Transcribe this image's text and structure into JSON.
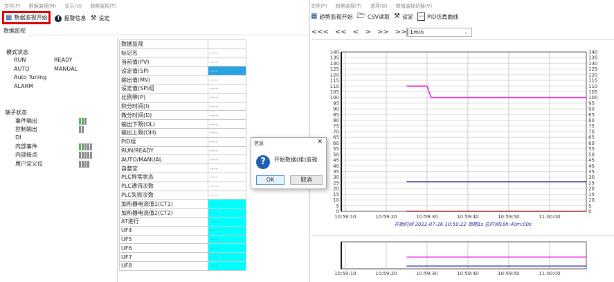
{
  "left": {
    "menu": [
      "文件(F)",
      "数据监视(M)",
      "显示(U)",
      "趋势监视(T)"
    ],
    "toolbar": {
      "start_monitor": "数据监视开始",
      "alarm_info": "报警信息",
      "settings": "设定"
    },
    "tab": "数据监视",
    "mode_status": {
      "title": "模式状态",
      "items": [
        [
          "RUN",
          "READY"
        ],
        [
          "AUTO",
          "MANUAL"
        ],
        [
          "Auto Tuning",
          ""
        ],
        [
          "ALARM",
          ""
        ]
      ]
    },
    "io_status": {
      "title": "端子状态",
      "items": [
        {
          "label": "事件输出",
          "bars": [
            1,
            0,
            0
          ]
        },
        {
          "label": "控制输出",
          "bars": [
            0,
            0
          ]
        },
        {
          "label": "DI",
          "bars": []
        },
        {
          "label": "内部事件",
          "bars": [
            1,
            0,
            0,
            0,
            0
          ]
        },
        {
          "label": "内部接点",
          "bars": [
            0,
            0,
            0,
            0,
            0
          ]
        },
        {
          "label": "用户定义位",
          "bars": [
            0,
            0,
            0,
            0
          ]
        }
      ]
    },
    "table": {
      "header": "数据监视",
      "rows": [
        {
          "label": "标记名",
          "value": "----",
          "style": ""
        },
        {
          "label": "当前值(PV)",
          "value": "----",
          "style": ""
        },
        {
          "label": "设定值(SP)",
          "value": "----",
          "style": "sel"
        },
        {
          "label": "输出值(MV)",
          "value": "----",
          "style": ""
        },
        {
          "label": "设定值(SP)组",
          "value": "----",
          "style": ""
        },
        {
          "label": "比例带(P)",
          "value": "----",
          "style": ""
        },
        {
          "label": "积分时间(I)",
          "value": "----",
          "style": ""
        },
        {
          "label": "微分时间(D)",
          "value": "----",
          "style": ""
        },
        {
          "label": "输出下限(OL)",
          "value": "----",
          "style": ""
        },
        {
          "label": "输出上限(OH)",
          "value": "----",
          "style": ""
        },
        {
          "label": "PID组",
          "value": "----",
          "style": ""
        },
        {
          "label": "RUN/READY",
          "value": "----",
          "style": ""
        },
        {
          "label": "AUTO/MANUAL",
          "value": "----",
          "style": ""
        },
        {
          "label": "自整定",
          "value": "----",
          "style": ""
        },
        {
          "label": "PLC异常状态",
          "value": "----",
          "style": ""
        },
        {
          "label": "PLC通讯次数",
          "value": "----",
          "style": ""
        },
        {
          "label": "PLC失败次数",
          "value": "----",
          "style": ""
        },
        {
          "label": "加热器电流值1(CT1)",
          "value": "----",
          "style": "cy"
        },
        {
          "label": "加热器电流值2(CT2)",
          "value": "----",
          "style": "cy"
        },
        {
          "label": "AT进行",
          "value": "----",
          "style": "cy"
        },
        {
          "label": "UF4",
          "value": "----",
          "style": "cy"
        },
        {
          "label": "UF5",
          "value": "----",
          "style": "cy"
        },
        {
          "label": "UF6",
          "value": "----",
          "style": "cy"
        },
        {
          "label": "UF7",
          "value": "----",
          "style": "cy"
        },
        {
          "label": "UF8",
          "value": "----",
          "style": "cy"
        }
      ]
    }
  },
  "right": {
    "menu": [
      "文件(F)",
      "趋势监视(T)",
      "选项(O)",
      "数值监视切换(V)"
    ],
    "toolbar": {
      "start_trend": "趋势监视开始",
      "csv_read": "CSV读取",
      "settings": "设定",
      "pid_sim": "PID仿真曲线"
    },
    "nav": [
      "<<<",
      "<<",
      "<",
      ">",
      ">>",
      ">>|"
    ],
    "interval": "1min",
    "info_line": "开始时间 2022-07-26 10:59:22 周期1s 总时间16h:40m:00s"
  },
  "dialog": {
    "title": "信息",
    "message": "开始数据(组)监视",
    "ok": "OK",
    "cancel": "取消"
  },
  "colors": {
    "highlight_box": "#e00000",
    "selected": "#29a3e0",
    "cyan": "#00ffff",
    "sp": "#e020e0",
    "mv": "#303090",
    "pv": "#a02020"
  },
  "chart_data": {
    "type": "line",
    "ylim": [
      0,
      140
    ],
    "yticks": [
      0,
      5,
      10,
      15,
      20,
      25,
      30,
      35,
      40,
      45,
      50,
      55,
      60,
      65,
      70,
      75,
      80,
      85,
      90,
      95,
      100,
      105,
      110,
      115,
      120,
      125,
      130,
      135,
      140
    ],
    "xlim": [
      "10:59:09",
      "11:00:09"
    ],
    "xticks": [
      "10:59:10",
      "10:59:20",
      "10:59:30",
      "10:59:40",
      "10:59:50",
      "11:00:00"
    ],
    "grid": true,
    "series": [
      {
        "color": "#e020e0",
        "points": [
          [
            "10:59:25",
            110
          ],
          [
            "10:59:30",
            110
          ],
          [
            "10:59:31",
            100
          ],
          [
            "11:00:09",
            100
          ]
        ]
      },
      {
        "color": "#303090",
        "points": [
          [
            "10:59:25",
            26
          ],
          [
            "11:00:09",
            26
          ]
        ]
      },
      {
        "color": "#a02020",
        "points": [
          [
            "10:59:25",
            0
          ],
          [
            "11:00:09",
            0
          ]
        ]
      }
    ]
  }
}
